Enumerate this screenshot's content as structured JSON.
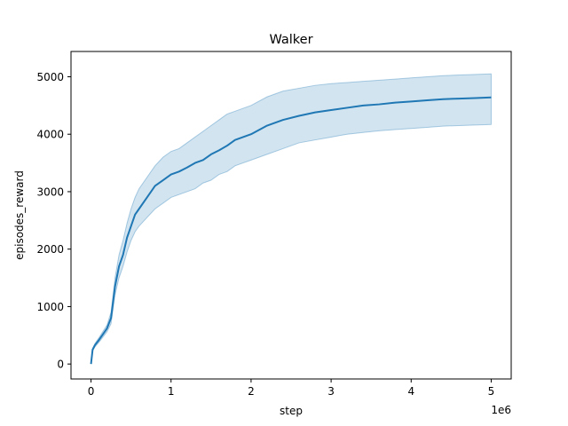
{
  "chart_data": {
    "type": "line",
    "title": "Walker",
    "xlabel": "step",
    "ylabel": "episodes_reward",
    "x_offset_label": "1e6",
    "xlim": [
      -0.25,
      5.25
    ],
    "ylim": [
      -260,
      5440
    ],
    "x_ticks": [
      0,
      1,
      2,
      3,
      4,
      5
    ],
    "y_ticks": [
      0,
      1000,
      2000,
      3000,
      4000,
      5000
    ],
    "grid": false,
    "legend": "none",
    "series_color": "#1f77b4",
    "band_color": "#1f77b4",
    "band_opacity": 0.2,
    "series": [
      {
        "x": [
          0,
          0.02,
          0.05,
          0.1,
          0.15,
          0.2,
          0.25,
          0.3,
          0.35,
          0.4,
          0.45,
          0.5,
          0.55,
          0.6,
          0.7,
          0.8,
          0.9,
          1.0,
          1.1,
          1.2,
          1.3,
          1.4,
          1.5,
          1.6,
          1.7,
          1.8,
          1.9,
          2.0,
          2.2,
          2.4,
          2.6,
          2.8,
          3.0,
          3.2,
          3.4,
          3.6,
          3.8,
          4.0,
          4.2,
          4.4,
          4.6,
          4.8,
          5.0
        ],
        "values": [
          0,
          250,
          330,
          420,
          520,
          620,
          800,
          1350,
          1700,
          1900,
          2200,
          2400,
          2600,
          2700,
          2900,
          3100,
          3200,
          3300,
          3350,
          3420,
          3500,
          3550,
          3650,
          3720,
          3800,
          3900,
          3950,
          4000,
          4150,
          4250,
          4320,
          4380,
          4420,
          4460,
          4500,
          4520,
          4550,
          4570,
          4590,
          4610,
          4620,
          4630,
          4640
        ],
        "lower": [
          0,
          230,
          300,
          380,
          470,
          560,
          700,
          1200,
          1500,
          1700,
          1950,
          2150,
          2300,
          2400,
          2550,
          2700,
          2800,
          2900,
          2950,
          3000,
          3050,
          3150,
          3200,
          3300,
          3350,
          3450,
          3500,
          3550,
          3650,
          3750,
          3850,
          3900,
          3950,
          4000,
          4030,
          4060,
          4080,
          4100,
          4120,
          4140,
          4150,
          4160,
          4170
        ],
        "upper": [
          0,
          270,
          360,
          460,
          570,
          680,
          900,
          1500,
          1900,
          2150,
          2450,
          2700,
          2900,
          3050,
          3250,
          3450,
          3600,
          3700,
          3750,
          3850,
          3950,
          4050,
          4150,
          4250,
          4350,
          4400,
          4450,
          4500,
          4650,
          4750,
          4800,
          4850,
          4880,
          4900,
          4920,
          4940,
          4960,
          4980,
          5000,
          5020,
          5030,
          5040,
          5050
        ]
      }
    ]
  }
}
